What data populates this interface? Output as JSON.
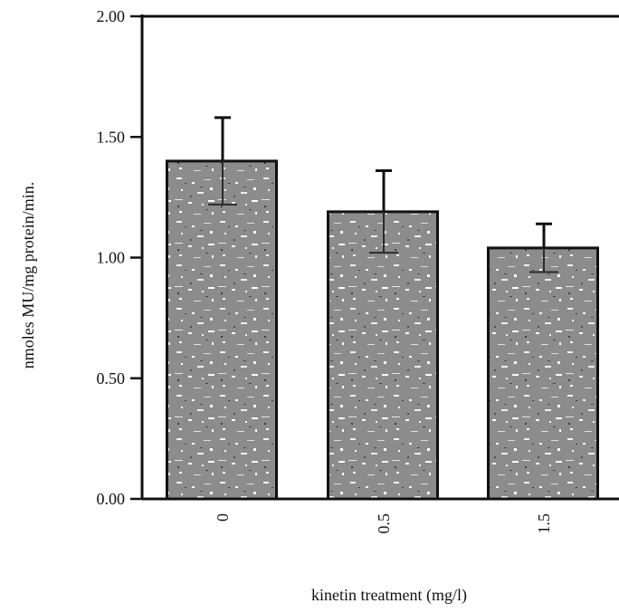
{
  "chart_data": {
    "type": "bar",
    "title": "",
    "xlabel": "kinetin treatment (mg/l)",
    "ylabel": "nmoles MU/mg protein/min.",
    "categories": [
      "0",
      "0.5",
      "1.5"
    ],
    "values": [
      1.4,
      1.19,
      1.04
    ],
    "error_bars": [
      0.18,
      0.17,
      0.1
    ],
    "ylim": [
      0.0,
      2.0
    ],
    "yticks": [
      "0.00",
      "0.50",
      "1.00",
      "1.50",
      "2.00"
    ],
    "grid": false,
    "legend": "none",
    "colors": {
      "bar_fill": "#8a8a8a",
      "bar_edge": "#111111",
      "axis": "#111111"
    }
  }
}
